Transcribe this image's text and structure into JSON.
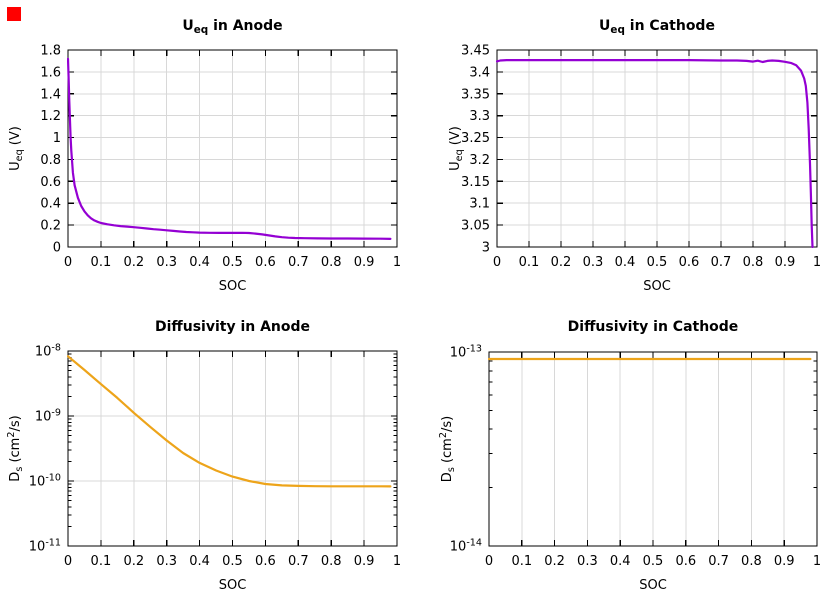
{
  "page": {
    "background": "#ffffff"
  },
  "marker": {
    "color": "#ff0000"
  },
  "style": {
    "grid_color": "#d8d8d8",
    "border_color": "#000000",
    "text_color": "#000000",
    "purple": "#9400d3",
    "orange": "#eda41a"
  },
  "chart_data": [
    {
      "id": "ueq-anode",
      "type": "line",
      "title": "U_eq in Anode",
      "title_rich": [
        {
          "t": "U"
        },
        {
          "t": "eq",
          "s": "sub"
        },
        {
          "t": " in Anode"
        }
      ],
      "xlabel": "SOC",
      "ylabel": "U_eq (V)",
      "ylabel_rich": [
        {
          "t": "U"
        },
        {
          "t": "eq",
          "s": "sub"
        },
        {
          "t": " (V)"
        }
      ],
      "x_scale": "linear",
      "y_scale": "linear",
      "xlim": [
        0,
        1
      ],
      "ylim": [
        0,
        1.8
      ],
      "grid": true,
      "x_ticks": {
        "values": [
          0,
          0.1,
          0.2,
          0.3,
          0.4,
          0.5,
          0.6,
          0.7,
          0.8,
          0.9,
          1
        ],
        "labels": [
          "0",
          "0.1",
          "0.2",
          "0.3",
          "0.4",
          "0.5",
          "0.6",
          "0.7",
          "0.8",
          "0.9",
          "1"
        ]
      },
      "y_ticks": {
        "values": [
          0,
          0.2,
          0.4,
          0.6,
          0.8,
          1,
          1.2,
          1.4,
          1.6,
          1.8
        ],
        "labels": [
          "0",
          "0.2",
          "0.4",
          "0.6",
          "0.8",
          "1",
          "1.2",
          "1.4",
          "1.6",
          "1.8"
        ]
      },
      "line_color": "#9400d3",
      "points": [
        [
          0,
          1.72
        ],
        [
          0.002,
          1.52
        ],
        [
          0.004,
          1.33
        ],
        [
          0.006,
          1.15
        ],
        [
          0.008,
          1.0
        ],
        [
          0.01,
          0.88
        ],
        [
          0.015,
          0.68
        ],
        [
          0.02,
          0.565
        ],
        [
          0.03,
          0.45
        ],
        [
          0.04,
          0.375
        ],
        [
          0.05,
          0.325
        ],
        [
          0.06,
          0.29
        ],
        [
          0.07,
          0.262
        ],
        [
          0.08,
          0.243
        ],
        [
          0.09,
          0.23
        ],
        [
          0.1,
          0.219
        ],
        [
          0.12,
          0.207
        ],
        [
          0.14,
          0.198
        ],
        [
          0.16,
          0.191
        ],
        [
          0.18,
          0.186
        ],
        [
          0.2,
          0.181
        ],
        [
          0.22,
          0.175
        ],
        [
          0.24,
          0.169
        ],
        [
          0.26,
          0.163
        ],
        [
          0.28,
          0.158
        ],
        [
          0.3,
          0.153
        ],
        [
          0.32,
          0.147
        ],
        [
          0.34,
          0.142
        ],
        [
          0.36,
          0.137
        ],
        [
          0.38,
          0.134
        ],
        [
          0.4,
          0.132
        ],
        [
          0.43,
          0.13
        ],
        [
          0.46,
          0.129
        ],
        [
          0.5,
          0.129
        ],
        [
          0.53,
          0.13
        ],
        [
          0.55,
          0.128
        ],
        [
          0.57,
          0.122
        ],
        [
          0.59,
          0.115
        ],
        [
          0.61,
          0.106
        ],
        [
          0.63,
          0.097
        ],
        [
          0.65,
          0.09
        ],
        [
          0.67,
          0.085
        ],
        [
          0.69,
          0.082
        ],
        [
          0.72,
          0.08
        ],
        [
          0.76,
          0.079
        ],
        [
          0.8,
          0.078
        ],
        [
          0.85,
          0.078
        ],
        [
          0.9,
          0.077
        ],
        [
          0.95,
          0.076
        ],
        [
          0.98,
          0.074
        ]
      ]
    },
    {
      "id": "ueq-cathode",
      "type": "line",
      "title": "U_eq in Cathode",
      "title_rich": [
        {
          "t": "U"
        },
        {
          "t": "eq",
          "s": "sub"
        },
        {
          "t": " in Cathode"
        }
      ],
      "xlabel": "SOC",
      "ylabel": "U_eq (V)",
      "ylabel_rich": [
        {
          "t": "U"
        },
        {
          "t": "eq",
          "s": "sub"
        },
        {
          "t": " (V)"
        }
      ],
      "x_scale": "linear",
      "y_scale": "linear",
      "xlim": [
        0,
        1
      ],
      "ylim": [
        3,
        3.45
      ],
      "grid": true,
      "x_ticks": {
        "values": [
          0,
          0.1,
          0.2,
          0.3,
          0.4,
          0.5,
          0.6,
          0.7,
          0.8,
          0.9,
          1
        ],
        "labels": [
          "0",
          "0.1",
          "0.2",
          "0.3",
          "0.4",
          "0.5",
          "0.6",
          "0.7",
          "0.8",
          "0.9",
          "1"
        ]
      },
      "y_ticks": {
        "values": [
          3,
          3.05,
          3.1,
          3.15,
          3.2,
          3.25,
          3.3,
          3.35,
          3.4,
          3.45
        ],
        "labels": [
          "3",
          "3.05",
          "3.1",
          "3.15",
          "3.2",
          "3.25",
          "3.3",
          "3.35",
          "3.4",
          "3.45"
        ]
      },
      "line_color": "#9400d3",
      "points": [
        [
          0,
          3.424
        ],
        [
          0.01,
          3.426
        ],
        [
          0.03,
          3.427
        ],
        [
          0.1,
          3.427
        ],
        [
          0.2,
          3.427
        ],
        [
          0.3,
          3.427
        ],
        [
          0.4,
          3.427
        ],
        [
          0.5,
          3.427
        ],
        [
          0.6,
          3.427
        ],
        [
          0.7,
          3.426
        ],
        [
          0.75,
          3.426
        ],
        [
          0.78,
          3.425
        ],
        [
          0.8,
          3.4235
        ],
        [
          0.815,
          3.4255
        ],
        [
          0.83,
          3.4225
        ],
        [
          0.845,
          3.425
        ],
        [
          0.86,
          3.426
        ],
        [
          0.88,
          3.425
        ],
        [
          0.9,
          3.423
        ],
        [
          0.92,
          3.42
        ],
        [
          0.935,
          3.415
        ],
        [
          0.95,
          3.403
        ],
        [
          0.96,
          3.385
        ],
        [
          0.965,
          3.368
        ],
        [
          0.97,
          3.33
        ],
        [
          0.974,
          3.27
        ],
        [
          0.978,
          3.19
        ],
        [
          0.981,
          3.12
        ],
        [
          0.9835,
          3.05
        ],
        [
          0.986,
          3.0
        ]
      ]
    },
    {
      "id": "diffusivity-anode",
      "type": "line",
      "title": "Diffusivity in Anode",
      "title_rich": [
        {
          "t": "Diffusivity in Anode"
        }
      ],
      "xlabel": "SOC",
      "ylabel": "D_s (cm^2/s)",
      "ylabel_rich": [
        {
          "t": "D"
        },
        {
          "t": "s",
          "s": "sub"
        },
        {
          "t": " (cm"
        },
        {
          "t": "2",
          "s": "sup"
        },
        {
          "t": "/s)"
        }
      ],
      "x_scale": "linear",
      "y_scale": "log",
      "xlim": [
        0,
        1
      ],
      "ylim": [
        1e-11,
        1e-08
      ],
      "grid": true,
      "y_minor": "log",
      "x_ticks": {
        "values": [
          0,
          0.1,
          0.2,
          0.3,
          0.4,
          0.5,
          0.6,
          0.7,
          0.8,
          0.9,
          1
        ],
        "labels": [
          "0",
          "0.1",
          "0.2",
          "0.3",
          "0.4",
          "0.5",
          "0.6",
          "0.7",
          "0.8",
          "0.9",
          "1"
        ]
      },
      "y_ticks": {
        "values": [
          1e-11,
          1e-10,
          1e-09,
          1e-08
        ],
        "labels": [
          [
            {
              "t": "10"
            },
            {
              "t": "-11",
              "s": "sup"
            }
          ],
          [
            {
              "t": "10"
            },
            {
              "t": "-10",
              "s": "sup"
            }
          ],
          [
            {
              "t": "10"
            },
            {
              "t": "-9",
              "s": "sup"
            }
          ],
          [
            {
              "t": "10"
            },
            {
              "t": "-8",
              "s": "sup"
            }
          ]
        ]
      },
      "line_color": "#eda41a",
      "points": [
        [
          0,
          8.3e-09
        ],
        [
          0.05,
          5.1e-09
        ],
        [
          0.1,
          3.1e-09
        ],
        [
          0.15,
          1.9e-09
        ],
        [
          0.2,
          1.12e-09
        ],
        [
          0.25,
          6.8e-10
        ],
        [
          0.3,
          4.2e-10
        ],
        [
          0.35,
          2.7e-10
        ],
        [
          0.4,
          1.9e-10
        ],
        [
          0.45,
          1.45e-10
        ],
        [
          0.5,
          1.17e-10
        ],
        [
          0.55,
          1e-10
        ],
        [
          0.6,
          9e-11
        ],
        [
          0.65,
          8.55e-11
        ],
        [
          0.7,
          8.4e-11
        ],
        [
          0.75,
          8.32e-11
        ],
        [
          0.8,
          8.3e-11
        ],
        [
          0.85,
          8.3e-11
        ],
        [
          0.9,
          8.3e-11
        ],
        [
          0.95,
          8.28e-11
        ],
        [
          0.98,
          8.25e-11
        ]
      ]
    },
    {
      "id": "diffusivity-cathode",
      "type": "line",
      "title": "Diffusivity in Cathode",
      "title_rich": [
        {
          "t": "Diffusivity in Cathode"
        }
      ],
      "xlabel": "SOC",
      "ylabel": "D_s (cm^2/s)",
      "ylabel_rich": [
        {
          "t": "D"
        },
        {
          "t": "s",
          "s": "sub"
        },
        {
          "t": " (cm"
        },
        {
          "t": "2",
          "s": "sup"
        },
        {
          "t": "/s)"
        }
      ],
      "x_scale": "linear",
      "y_scale": "log",
      "xlim": [
        0,
        1
      ],
      "ylim": [
        1e-14,
        1e-13
      ],
      "grid": true,
      "y_minor": "log",
      "x_ticks": {
        "values": [
          0,
          0.1,
          0.2,
          0.3,
          0.4,
          0.5,
          0.6,
          0.7,
          0.8,
          0.9,
          1
        ],
        "labels": [
          "0",
          "0.1",
          "0.2",
          "0.3",
          "0.4",
          "0.5",
          "0.6",
          "0.7",
          "0.8",
          "0.9",
          "1"
        ]
      },
      "y_ticks": {
        "values": [
          1e-14,
          1e-13
        ],
        "labels": [
          [
            {
              "t": "10"
            },
            {
              "t": "-14",
              "s": "sup"
            }
          ],
          [
            {
              "t": "10"
            },
            {
              "t": "-13",
              "s": "sup"
            }
          ]
        ]
      },
      "line_color": "#eda41a",
      "points": [
        [
          0,
          9.2e-14
        ],
        [
          0.2,
          9.2e-14
        ],
        [
          0.4,
          9.2e-14
        ],
        [
          0.6,
          9.2e-14
        ],
        [
          0.8,
          9.2e-14
        ],
        [
          0.98,
          9.2e-14
        ]
      ]
    }
  ]
}
